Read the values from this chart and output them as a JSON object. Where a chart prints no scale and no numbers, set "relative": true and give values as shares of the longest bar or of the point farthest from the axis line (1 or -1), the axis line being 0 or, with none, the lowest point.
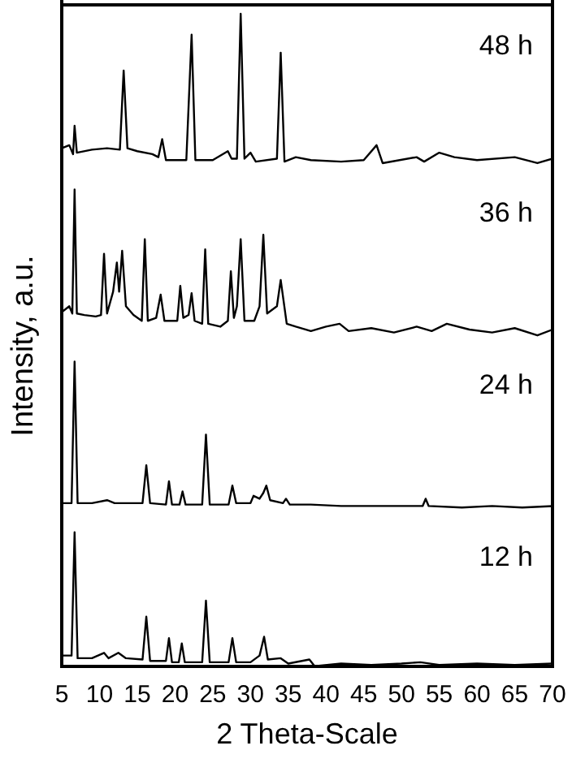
{
  "chart_data": [
    {
      "type": "line",
      "relative": true,
      "ylabel": "Intensity, a.u.",
      "annotations": [
        "48 h"
      ],
      "tick_labels": false,
      "xlim": [
        5,
        70
      ],
      "xticks": [
        5,
        10,
        15,
        20,
        25,
        30,
        35,
        40,
        45,
        50,
        55,
        60,
        65,
        70
      ],
      "marker": "none",
      "legend": false,
      "grid": false,
      "series": [
        {
          "color": "#000000",
          "x": [
            5,
            6,
            6.5,
            6.7,
            7,
            9,
            11,
            12.7,
            13.2,
            13.7,
            15,
            17,
            17.8,
            18.3,
            18.8,
            21.5,
            22.2,
            22.7,
            25,
            27,
            27.5,
            28.2,
            28.7,
            29.2,
            30,
            30.7,
            33.5,
            34,
            34.5,
            36,
            38,
            42,
            45,
            46.7,
            47.5,
            52,
            53,
            55,
            57,
            60,
            65,
            68,
            70
          ],
          "values": [
            0.1,
            0.12,
            0.06,
            0.25,
            0.07,
            0.09,
            0.1,
            0.09,
            0.62,
            0.1,
            0.08,
            0.06,
            0.04,
            0.16,
            0.02,
            0.02,
            0.86,
            0.02,
            0.02,
            0.08,
            0.03,
            0.03,
            1,
            0.03,
            0.07,
            0.01,
            0.03,
            0.74,
            0.01,
            0.04,
            0.02,
            0.01,
            0.02,
            0.12,
            0,
            0.04,
            0.01,
            0.07,
            0.04,
            0.02,
            0.04,
            0,
            0.03
          ]
        }
      ]
    },
    {
      "type": "line",
      "relative": true,
      "annotations": [
        "36 h"
      ],
      "tick_labels": false,
      "xlim": [
        5,
        70
      ],
      "xticks": [
        5,
        10,
        15,
        20,
        25,
        30,
        35,
        40,
        45,
        50,
        55,
        60,
        65,
        70
      ],
      "marker": "none",
      "legend": false,
      "grid": false,
      "series": [
        {
          "color": "#000000",
          "x": [
            5,
            6,
            6.4,
            6.7,
            7,
            8,
            9.5,
            10.2,
            10.6,
            11,
            11.8,
            12.3,
            12.6,
            13,
            13.5,
            14.5,
            15.6,
            16,
            16.4,
            17.5,
            18.1,
            18.6,
            20.3,
            20.7,
            21.1,
            21.8,
            22.2,
            22.6,
            23.6,
            24,
            24.4,
            26,
            27,
            27.4,
            27.8,
            28.2,
            28.7,
            29.2,
            30.5,
            31.2,
            31.7,
            32.2,
            33.5,
            34,
            34.8,
            36,
            38,
            40,
            41.8,
            43,
            46,
            49,
            52,
            54,
            56,
            59,
            62,
            65,
            68,
            70
          ],
          "values": [
            0.16,
            0.2,
            0.15,
            1,
            0.15,
            0.14,
            0.13,
            0.14,
            0.56,
            0.15,
            0.3,
            0.5,
            0.3,
            0.58,
            0.2,
            0.14,
            0.1,
            0.66,
            0.1,
            0.12,
            0.28,
            0.1,
            0.1,
            0.34,
            0.12,
            0.14,
            0.29,
            0.1,
            0.08,
            0.59,
            0.08,
            0.06,
            0.1,
            0.44,
            0.12,
            0.2,
            0.66,
            0.1,
            0.1,
            0.2,
            0.69,
            0.15,
            0.2,
            0.38,
            0.08,
            0.06,
            0.03,
            0.06,
            0.08,
            0.03,
            0.05,
            0.02,
            0.06,
            0.03,
            0.08,
            0.04,
            0.02,
            0.05,
            0,
            0.04
          ]
        }
      ]
    },
    {
      "type": "line",
      "relative": true,
      "annotations": [
        "24 h"
      ],
      "tick_labels": false,
      "xlim": [
        5,
        70
      ],
      "xticks": [
        5,
        10,
        15,
        20,
        25,
        30,
        35,
        40,
        45,
        50,
        55,
        60,
        65,
        70
      ],
      "marker": "none",
      "legend": false,
      "grid": false,
      "series": [
        {
          "color": "#000000",
          "x": [
            5,
            6.3,
            6.7,
            7.1,
            9,
            11,
            12,
            15.7,
            16.2,
            16.7,
            18.8,
            19.2,
            19.6,
            20.6,
            21,
            21.4,
            23.6,
            24.1,
            24.6,
            27.1,
            27.6,
            28.1,
            30,
            30.4,
            31.2,
            31.7,
            32.1,
            32.6,
            34.3,
            34.7,
            35.2,
            38,
            42,
            46,
            50,
            52.8,
            53.2,
            53.6,
            58,
            62,
            66,
            70
          ],
          "values": [
            0.03,
            0.03,
            1,
            0.03,
            0.03,
            0.05,
            0.03,
            0.03,
            0.29,
            0.03,
            0.02,
            0.18,
            0.02,
            0.02,
            0.11,
            0.02,
            0.02,
            0.5,
            0.02,
            0.02,
            0.15,
            0.03,
            0.03,
            0.08,
            0.06,
            0.1,
            0.15,
            0.05,
            0.03,
            0.06,
            0.02,
            0.02,
            0.01,
            0.01,
            0.01,
            0.01,
            0.06,
            0.01,
            0,
            0.01,
            0,
            0.01
          ]
        }
      ]
    },
    {
      "type": "line",
      "relative": true,
      "annotations": [
        "12 h"
      ],
      "tick_labels": "x",
      "xlabel": "2 Theta-Scale",
      "xlim": [
        5,
        70
      ],
      "xticks": [
        5,
        10,
        15,
        20,
        25,
        30,
        35,
        40,
        45,
        50,
        55,
        60,
        65,
        70
      ],
      "marker": "none",
      "legend": false,
      "grid": false,
      "series": [
        {
          "color": "#000000",
          "x": [
            5,
            6.3,
            6.7,
            7.1,
            9,
            10.6,
            11.2,
            12.5,
            13.5,
            15.7,
            16.2,
            16.7,
            18.8,
            19.2,
            19.6,
            20.5,
            20.9,
            21.3,
            23.6,
            24.1,
            24.6,
            27.1,
            27.6,
            28.1,
            30,
            31.2,
            31.8,
            32.3,
            34,
            35,
            37.8,
            38.5,
            42,
            46,
            50,
            52.5,
            55,
            60,
            65,
            70
          ],
          "values": [
            0.08,
            0.08,
            1,
            0.06,
            0.06,
            0.1,
            0.06,
            0.1,
            0.06,
            0.05,
            0.37,
            0.04,
            0.04,
            0.21,
            0.03,
            0.03,
            0.17,
            0.03,
            0.03,
            0.49,
            0.03,
            0.03,
            0.21,
            0.03,
            0.03,
            0.08,
            0.22,
            0.05,
            0.06,
            0.02,
            0.05,
            0,
            0.02,
            0.01,
            0.02,
            0.03,
            0.01,
            0.02,
            0.01,
            0.02
          ]
        }
      ]
    }
  ]
}
